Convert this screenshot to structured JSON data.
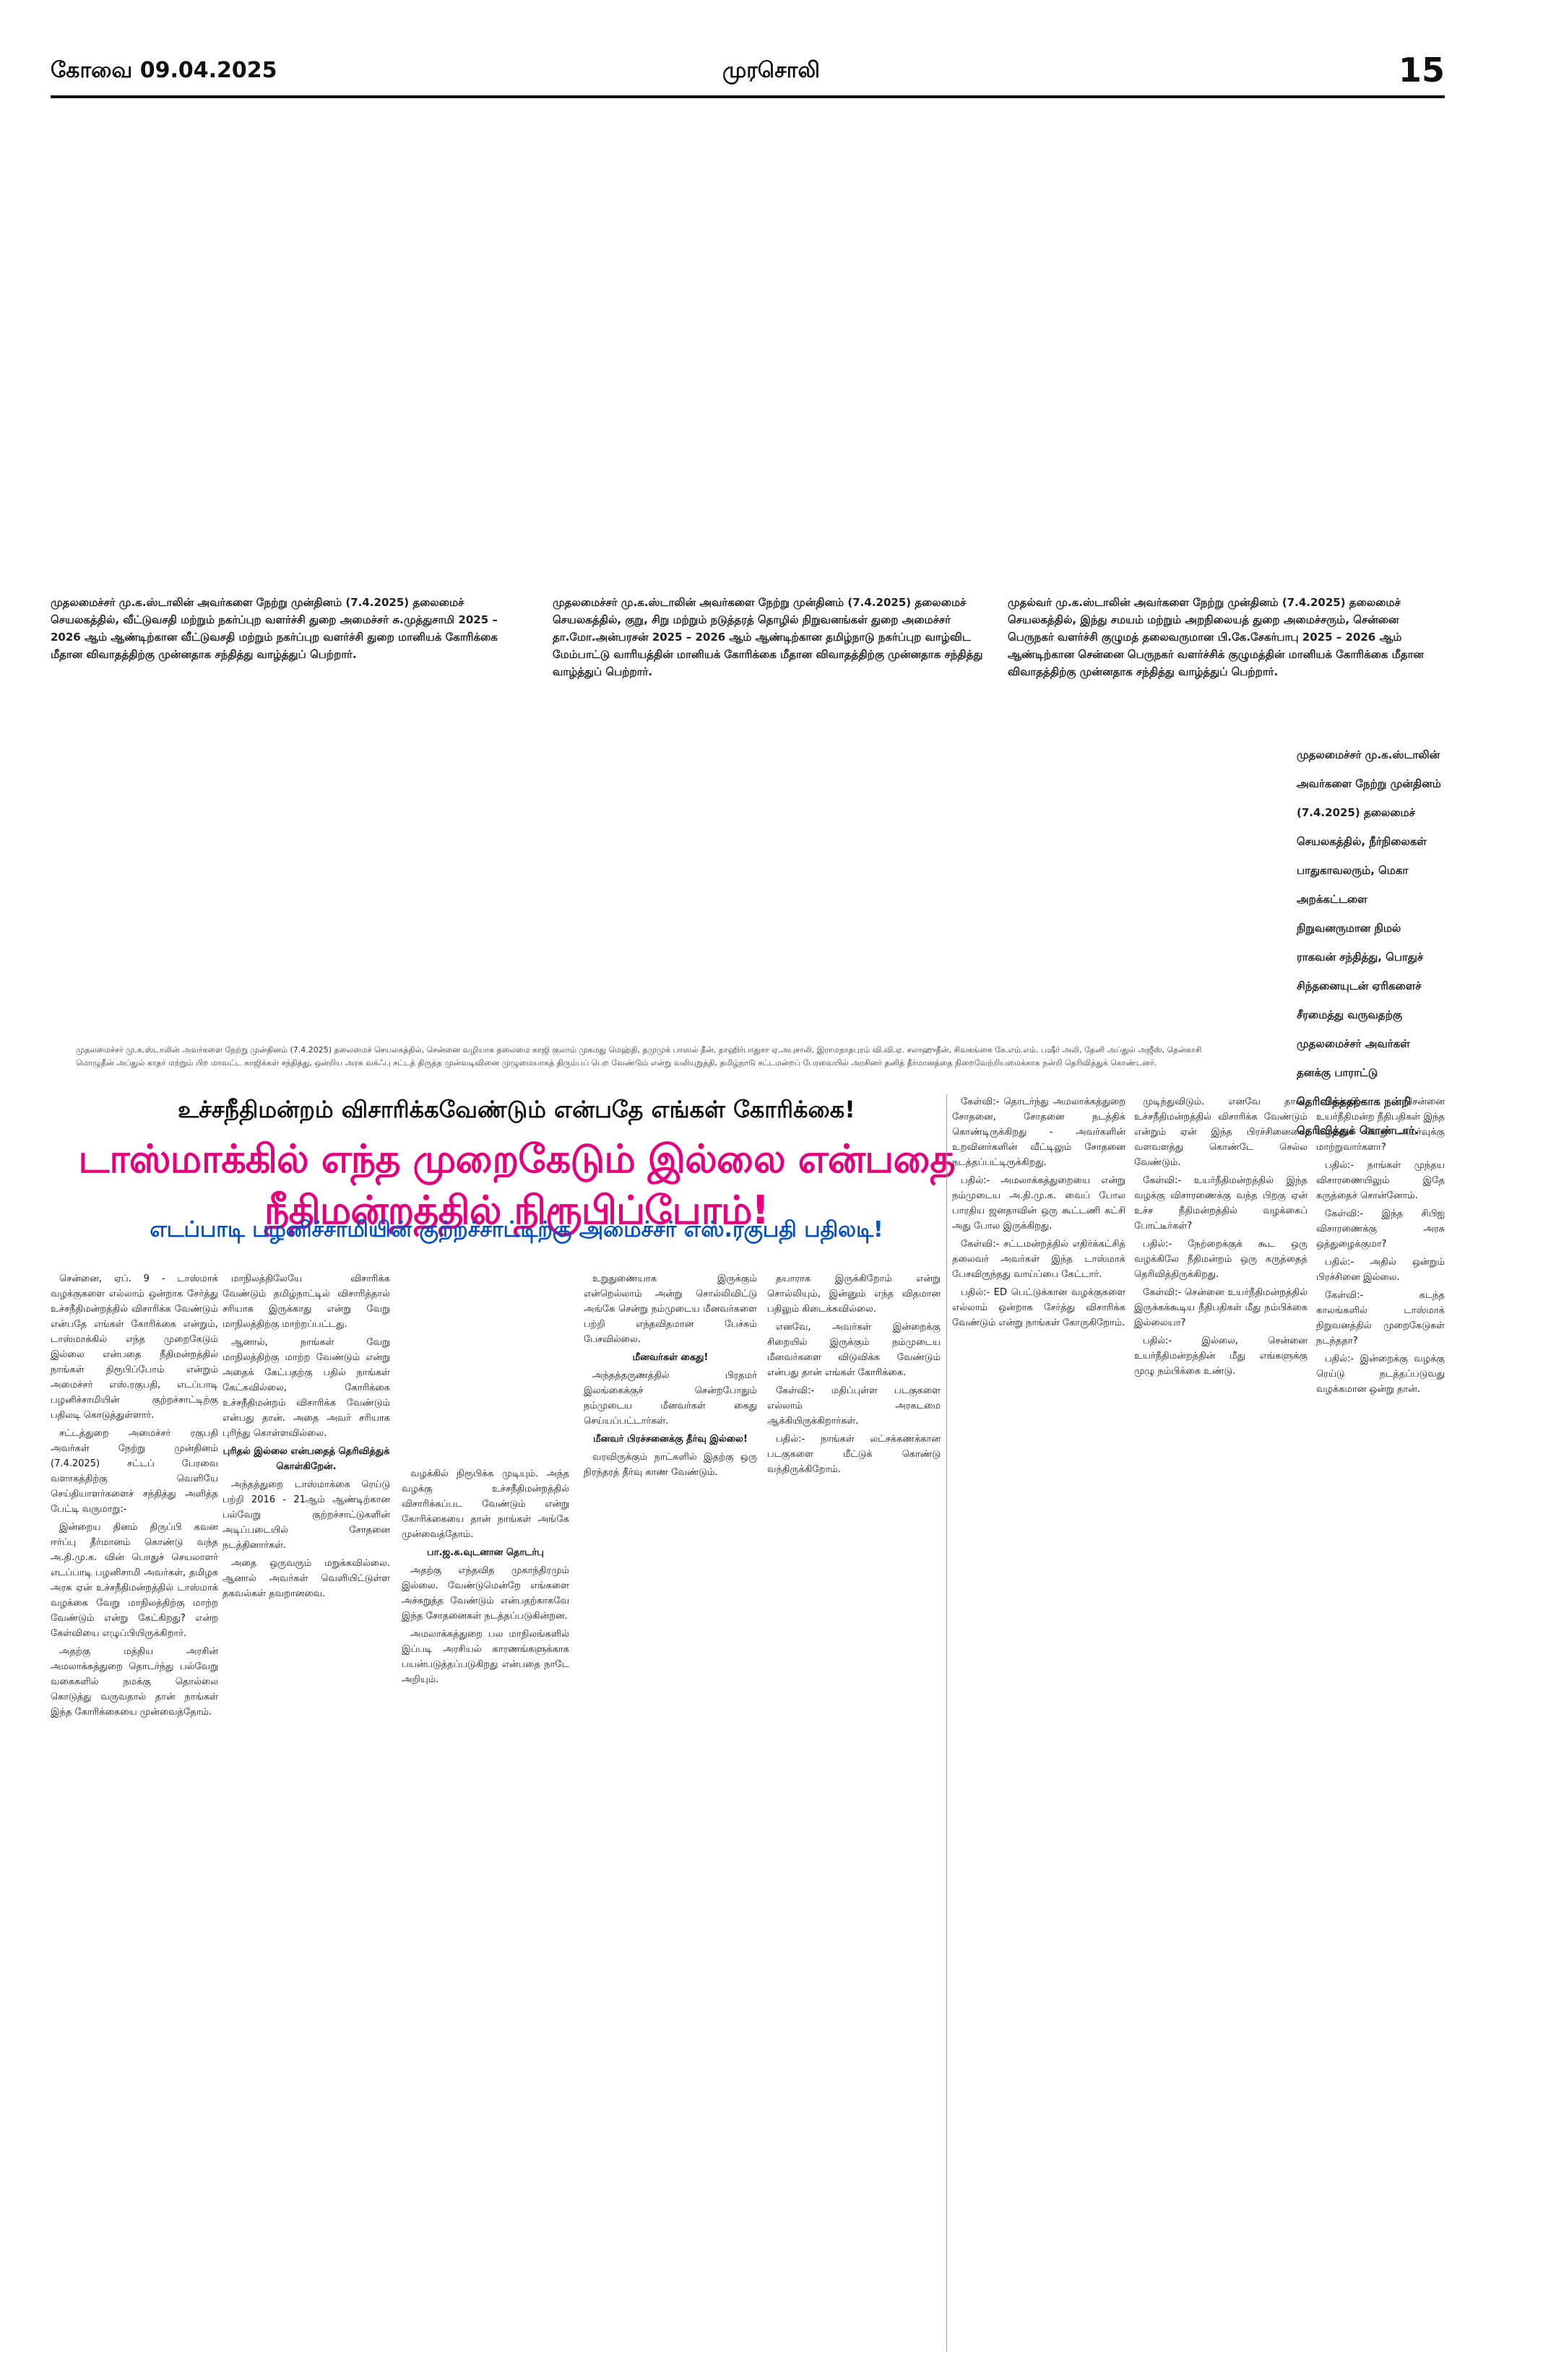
{
  "masthead": {
    "place_date": "கோவை  09.04.2025",
    "paper_name": "முரசொலி",
    "page_number": "15"
  },
  "captions": {
    "cap1": "முதலமைச்சர் மு.க.ஸ்டாலின் அவர்களை நேற்று முன்தினம் (7.4.2025) தலைமைச் செயலகத்தில், வீட்டுவசதி மற்றும் நகர்ப்புற வளர்ச்சி துறை அமைச்சர் சு.முத்துசாமி 2025 – 2026 ஆம் ஆண்டிற்கான வீட்டுவசதி மற்றும் நகர்ப்புற வளர்ச்சி துறை மானியக் கோரிக்கை மீதான விவாதத்திற்கு முன்னதாக சந்தித்து வாழ்த்துப் பெற்றார்.",
    "cap2": "முதலமைச்சர் மு.க.ஸ்டாலின் அவர்களை நேற்று முன்தினம் (7.4.2025) தலைமைச் செயலகத்தில், குறு, சிறு மற்றும் நடுத்தரத் தொழில் நிறுவனங்கள் துறை அமைச்சர் தா.மோ.அன்பரசன் 2025 – 2026 ஆம் ஆண்டிற்கான தமிழ்நாடு நகர்ப்புற வாழ்விட மேம்பாட்டு வாரியத்தின் மானியக் கோரிக்கை மீதான விவாதத்திற்கு முன்னதாக சந்தித்து வாழ்த்துப் பெற்றார்.",
    "cap3": "முதல்வர் மு.க.ஸ்டாலின் அவர்களை நேற்று முன்தினம் (7.4.2025) தலைமைச் செயலகத்தில், இந்து சமயம் மற்றும் அறநிலையத் துறை அமைச்சரும், சென்னை பெருநகர் வளர்ச்சி குழுமத் தலைவருமான பி.கே.சேகர்பாபு 2025 – 2026 ஆம் ஆண்டிற்கான சென்னை பெருநகர் வளர்ச்சிக் குழுமத்தின் மானியக் கோரிக்கை மீதான விவாதத்திற்கு முன்னதாக சந்தித்து வாழ்த்துப் பெற்றார்.",
    "side": "முதலமைச்சர் மு.க.ஸ்டாலின் அவர்களை நேற்று முன்தினம் (7.4.2025) தலைமைச் செயலகத்தில், நீர்நிலைகள் பாதுகாவலரும், மெகா அறக்கட்டளை நிறுவனருமான நிமல் ராகவன் சந்தித்து, பொதுச் சிந்தனையுடன் ஏரிகளைச் சீரமைத்து வருவதற்கு முதலமைச்சர் அவர்கள் தனக்கு பாராட்டு தெரிவித்ததற்காக நன்றி தெரிவித்துக் கொண்டார்.",
    "wide": "முதலமைச்சர் மு.க.ஸ்டாலின் அவர்களை நேற்று முன்தினம் (7.4.2025) தலைமைச் செயலகத்தில், சென்னை வழியாக தலைமை காஜி குலாம் முகமது மெஹ்தி, தமுமுக் பாஸல் தீன், தாஹிர்பாதுசா ஏ.அபுசாலி, இராமநாதபுரம் வி.வி.ஏ. சலாஹுதீன், சிவகங்கை கே.எம்.எம். பஷீர் அலி, தேனி அப்துல் அஜீஸ், தென்காசி மொழுதீன் அப்துல் காதர் மற்றும் பிற மாவட்ட காஜிக்கள் சந்தித்து, ஒன்றிய அரசு வக்ஃபு சட்டத் திருத்த முன்வடிவினை முழுமையாகத் திரும்பப் பெற வேண்டும் என்று வலியுறுத்தி, தமிழ்நாடு சட்டமன்றப் பேரவையில் அரசினர் தனித் தீர்மானத்தை நிறைவேற்றியமைக்காக நன்றி தெரிவித்துக் கொண்டனர்."
  },
  "article": {
    "sub_headline": "உச்சநீதிமன்றம் விசாரிக்கவேண்டும் என்பதே எங்கள் கோரிக்கை!",
    "headline": "டாஸ்மாக்கில் எந்த முறைகேடும் இல்லை என்பதை நீதிமன்றத்தில் நிரூபிப்போம்!",
    "kicker": "எடப்பாடி பழனிச்சாமியின் குற்றச்சாட்டிற்கு அமைச்சர் எஸ்.ரகுபதி பதிலடி!",
    "col1": [
      "சென்னை, ஏப். 9 - டாஸ்மாக் வழக்குகளை எல்லாம் ஒன்றாக சேர்த்து உச்சநீதிமன்றத்தில் விசாரிக்க வேண்டும் என்பதே எங்கள் கோரிக்கை என்றும், டாஸ்மாக்கில் எந்த முறைகேடும் இல்லை என்பதை நீதிமன்றத்தில் நாங்கள் நிரூபிப்போம் என்றும் அமைச்சர் எஸ்.ரகுபதி, எடப்பாடி பழனிச்சாமியின் குற்றச்சாட்டிற்கு பதிலடி கொடுத்துள்ளார்.",
      "சட்டத்துறை அமைச்சர் ரகுபதி அவர்கள் நேற்று முன்தினம் (7.4.2025) சட்டப் பேரவை வளாகத்திற்கு வெளியே செய்தியாளர்களைச் சந்தித்து அளித்த பேட்டி வருமாறு:-",
      "இன்றைய தினம் திருப்பி கவன ஈர்ப்பு தீர்மானம் கொண்டு வந்த அ.தி.மு.க. வின் பொதுச் செயலாளர் எடப்பாடி பழனிசாமி அவர்கள், தமிழக அரசு ஏன் உச்சநீதிமன்றத்தில் டாஸ்மாக் வழக்கை வேறு மாநிலத்திற்கு மாற்ற வேண்டும் என்று கேட்கிறது? என்ற கேள்வியை எழுப்பியிருக்கிறார்.",
      "அதற்கு மத்திய அரசின் அமலாக்கத்துறை தொடர்ந்து பல்வேறு வகைகளில் நமக்கு தொல்லை கொடுத்து வருவதால் தான் நாங்கள் இந்த கோரிக்கையை முன்வைத்தோம்."
    ],
    "col2": [
      "மாநிலத்திலேயே விசாரிக்க வேண்டும் தமிழ்நாட்டில் விசாரித்தால் சரியாக இருக்காது என்று வேறு மாநிலத்திற்கு மாற்றப்பட்டது.",
      "ஆனால், நாங்கள் வேறு மாநிலத்திற்கு மாற்ற வேண்டும் என்று அதைக் கேட்பதற்கு பதில் நாங்கள் கேட்கவில்லை, கோரிக்கை உச்சநீதிமன்றம் விசாரிக்க வேண்டும் என்பது தான். அதை அவர் சரியாக புரிந்து கொள்ளவில்லை.",
      "புரிதல் இல்லை என்பதைத் தெரிவித்துக் கொள்கிறேன்.",
      "அந்தத்துறை டாஸ்மாக்கை ரெய்டு பற்றி 2016 - 21ஆம் ஆண்டிற்கான பல்வேறு குற்றச்சாட்டுகளின் அடிப்படையில் சோதனை நடத்தினார்கள்.",
      "அதை ஒருவரும் மறுக்கவில்லை. ஆனால் அவர்கள் வெளியிட்டுள்ள தகவல்கள் தவறானவை."
    ],
    "col3": [
      "வழக்கில் நிரூபிக்க முடியும். அந்த வழக்கு உச்சநீதிமன்றத்தில் விசாரிக்கப்பட வேண்டும் என்று கோரிக்கையை தான் நாங்கள் அங்கே முன்வைத்தோம்.",
      "பா.ஜ.க.வுடனான தொடர்பு",
      "அதற்கு எந்தவித முகாந்திரமும் இல்லை. வேண்டுமென்றே எங்களை அச்சுறுத்த வேண்டும் என்பதற்காகவே இந்த சோதனைகள் நடத்தப்படுகின்றன.",
      "அமலாக்கத்துறை பல மாநிலங்களில் இப்படி அரசியல் காரணங்களுக்காக பயன்படுத்தப்படுகிறது என்பதை நாடே அறியும்."
    ],
    "col4": [
      "உறுதுணையாக இருக்கும் என்றெல்லாம் அன்று சொல்லிவிட்டு அங்கே சென்று நம்முடைய மீனவர்களை பற்றி எந்தவிதமான பேச்சும் பேசவில்லை.",
      "மீனவர்கள் கைது!",
      "அந்தத்தருணத்தில் பிரதமர் இலங்கைக்குச் சென்றபோதும் நம்முடைய மீனவர்கள் கைது செய்யப்பட்டார்கள்.",
      "மீனவர் பிரச்சனைக்கு தீர்வு இல்லை!",
      "வரவிருக்கும் நாட்களில் இதற்கு ஒரு நிரந்தரத் தீர்வு காண வேண்டும்."
    ],
    "col5": [
      "தயாராக இருக்கிறோம் என்று சொல்லியும், இன்னும் எந்த விதமான பதிலும் கிடைக்கவில்லை.",
      "எனவே, அவர்கள் இன்றைக்கு சிறையில் இருக்கும் நம்முடைய மீனவர்களை விடுவிக்க வேண்டும் என்பது தான் எங்கள் கோரிக்கை.",
      "கேள்வி:- மதிப்புள்ள படகுகளை எல்லாம் அரசுடமை ஆக்கியிருக்கிறார்கள்.",
      "பதில்:- நாங்கள் லட்சக்கணக்கான படகுகளை மீட்டுக் கொண்டு வந்திருக்கிறோம்."
    ],
    "col6": [
      "கேள்வி:- தொடர்ந்து அமலாக்கத்துறை சோதனை, சோதனை நடத்திக் கொண்டிருக்கிறது - அவர்களின் உறவினர்களின் வீட்டிலும் சோதனை நடத்தப்பட்டிருக்கிறது.",
      "பதில்:- அமலாக்கத்துறையை என்று நம்முடைய அ.தி.மு.க. வைப் போல பாரதிய ஜனதாவின் ஒரு கூட்டணி கட்சி அது போல இருக்கிறது.",
      "கேள்வி:- சட்டமன்றத்தில் எதிர்க்கட்சித் தலைவர் அவர்கள் இந்த டாஸ்மாக் பேசவிருந்தது வாய்ப்பை கேட்டார்.",
      "பதில்:- ED பெட்டுக்கான வழக்குகளை எல்லாம் ஒன்றாக சேர்த்து விசாரிக்க வேண்டும் என்று நாங்கள் கோருகிறோம்."
    ],
    "col7": [
      "முடிந்துவிடும். எனவே தான், உச்சநீதிமன்றத்தில் விசாரிக்க வேண்டும் என்றும் ஏன் இந்த பிரச்சினையை வளவளத்து கொண்டே செல்ல வேண்டும்.",
      "கேள்வி:- உயர்நீதிமன்றத்தில் இந்த வழக்கு விசாரணைக்கு வந்த பிறகு ஏன் உச்ச நீதிமன்றத்தில் வழக்கைப் போட்டீர்கள்?",
      "பதில்:- நேற்றைக்குக் கூட ஒரு வழக்கிலே நீதிமன்றம் ஒரு கருத்தைத் தெரிவித்திருக்கிறது.",
      "கேள்வி:- சென்னை உயர்நீதிமன்றத்தில் இருக்கக்கூடிய நீதிபதிகள் மீது நம்பிக்கை இல்லையா?",
      "பதில்:- இல்லை, சென்னை உயர்நீதிமன்றத்தின் மீது எங்களுக்கு முழு நம்பிக்கை உண்டு."
    ],
    "col8": [
      "கேள்வி:- சென்னை உயர்நீதிமன்ற நீதிபதிகள் இந்த வழக்கை வேறு அமர்வுக்கு மாற்றுவார்களா?",
      "பதில்:- நாங்கள் முந்தய விசாரணையிலும் இதே கருத்தைச் சொன்னோம்.",
      "கேள்வி:- இந்த சிபிஐ விசாரணைக்கு அரசு ஒத்துழைக்குமா?",
      "பதில்:- அதில் ஒன்றும் பிரச்சினை இல்லை.",
      "கேள்வி:- கடந்த காலங்களில் டாஸ்மாக் நிறுவனத்தில் முறைகேடுகள் நடந்ததா?",
      "பதில்:- இன்றைக்கு வழக்கு ரெய்டு நடத்தப்படுவது வழக்கமான ஒன்று தான்."
    ]
  }
}
